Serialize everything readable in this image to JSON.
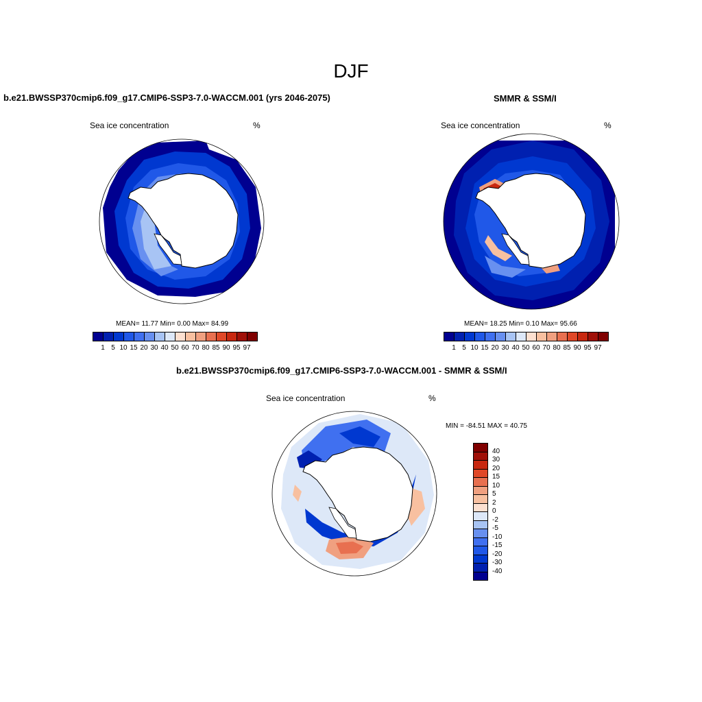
{
  "main_title": "DJF",
  "panels": [
    {
      "title": "b.e21.BWSSP370cmip6.f09_g17.CMIP6-SSP3-7.0-WACCM.001 (yrs 2046-2075)",
      "left_label": "Sea ice concentration",
      "right_label": "%",
      "stats": "MEAN=  11.77  Min=   0.00  Max=  84.99"
    },
    {
      "title": "SMMR & SSM/I",
      "left_label": "Sea ice concentration",
      "right_label": "%",
      "stats": "MEAN=  18.25  Min=   0.10  Max=  95.66"
    },
    {
      "title": "b.e21.BWSSP370cmip6.f09_g17.CMIP6-SSP3-7.0-WACCM.001 - SMMR & SSM/I",
      "left_label": "Sea ice concentration",
      "right_label": "%",
      "stats": "MIN = -84.51 MAX =  40.75"
    }
  ],
  "colorbar_conc": {
    "labels": [
      "1",
      "5",
      "10",
      "15",
      "20",
      "30",
      "40",
      "50",
      "60",
      "70",
      "80",
      "85",
      "90",
      "95",
      "97"
    ],
    "colors": [
      "#000090",
      "#0020b0",
      "#0038d0",
      "#2058e8",
      "#4070f0",
      "#6890f0",
      "#a8c4f4",
      "#dde8f8",
      "#fde0d0",
      "#f8c0a0",
      "#f0a080",
      "#e87050",
      "#e04828",
      "#c82810",
      "#a01008",
      "#800000"
    ]
  },
  "colorbar_diff": {
    "labels": [
      "40",
      "30",
      "20",
      "15",
      "10",
      "5",
      "2",
      "0",
      "-2",
      "-5",
      "-10",
      "-15",
      "-20",
      "-30",
      "-40"
    ],
    "colors": [
      "#800000",
      "#a01008",
      "#c82810",
      "#e04828",
      "#e87050",
      "#f0a080",
      "#f8c0a0",
      "#fde0d0",
      "#dde8f8",
      "#a8c4f4",
      "#6890f0",
      "#4070f0",
      "#2058e8",
      "#0038d0",
      "#0020b0",
      "#000090"
    ]
  }
}
